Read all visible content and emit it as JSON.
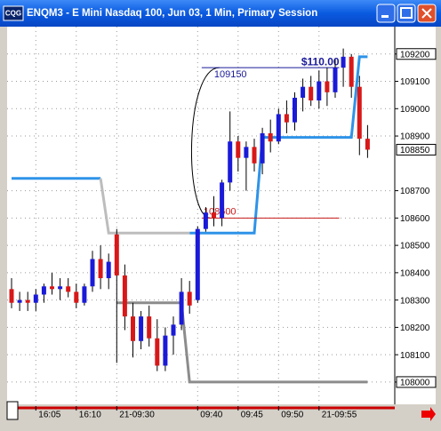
{
  "window": {
    "logo": "CQG"
  },
  "chart_data": {
    "type": "candlestick",
    "title": "ENQM3 - E Mini Nasdaq 100, Jun 03, 1 Min, Primary Session",
    "categories": [
      null,
      null,
      null,
      "16:05",
      null,
      null,
      null,
      null,
      "16:10",
      null,
      null,
      null,
      null,
      "21-09:30",
      null,
      null,
      null,
      null,
      null,
      null,
      null,
      null,
      null,
      "09:40",
      null,
      null,
      null,
      null,
      "09:45",
      null,
      null,
      null,
      null,
      "09:50",
      null,
      null,
      null,
      null,
      "21-09:55",
      null,
      null,
      null,
      null,
      null,
      null
    ],
    "open": [
      108340,
      108290,
      108300,
      108290,
      108320,
      108350,
      108340,
      108350,
      108330,
      108290,
      108350,
      108450,
      108380,
      108540,
      108390,
      108240,
      108150,
      108240,
      108160,
      108060,
      108170,
      108210,
      108330,
      108300,
      108560,
      108620,
      108600,
      108730,
      108880,
      108820,
      108860,
      108800,
      108910,
      108880,
      108980,
      108950,
      109040,
      109080,
      109030,
      109100,
      109060,
      109150,
      109190,
      109080,
      108890
    ],
    "high": [
      108380,
      108330,
      108330,
      108340,
      108360,
      108400,
      108380,
      108380,
      108360,
      108360,
      108480,
      108500,
      108470,
      108560,
      108430,
      108290,
      108260,
      108280,
      108230,
      108200,
      108240,
      108380,
      108370,
      108570,
      108640,
      108680,
      108740,
      108990,
      108900,
      108880,
      108890,
      108930,
      108960,
      109000,
      109030,
      109060,
      109110,
      109120,
      109140,
      109150,
      109180,
      109220,
      109200,
      109120,
      108940
    ],
    "low": [
      108270,
      108260,
      108260,
      108260,
      108290,
      108320,
      108300,
      108310,
      108270,
      108280,
      108330,
      108340,
      108340,
      108070,
      108190,
      108090,
      108120,
      108130,
      108040,
      108040,
      108100,
      108190,
      108250,
      108290,
      108550,
      108570,
      108570,
      108700,
      108770,
      108700,
      108770,
      108760,
      108840,
      108870,
      108910,
      108920,
      108990,
      109010,
      109000,
      109010,
      109040,
      109080,
      109040,
      108830,
      108820
    ],
    "close": [
      108290,
      108300,
      108290,
      108320,
      108350,
      108340,
      108350,
      108330,
      108290,
      108350,
      108450,
      108380,
      108440,
      108390,
      108240,
      108150,
      108240,
      108160,
      108060,
      108170,
      108210,
      108330,
      108280,
      108560,
      108620,
      108600,
      108730,
      108880,
      108820,
      108860,
      108800,
      108910,
      108880,
      108980,
      108950,
      109040,
      109080,
      109030,
      109100,
      109060,
      109150,
      109190,
      109080,
      108890,
      108850
    ],
    "up_color": "#1a1ad8",
    "down_color": "#d81818",
    "lines": [
      {
        "color": "#2e93e8",
        "values": [
          108745,
          108745,
          108745,
          108745,
          108745,
          108745,
          108745,
          108745,
          108745,
          108745,
          108745,
          108745,
          null,
          null,
          null,
          null,
          null,
          null,
          null,
          null,
          null,
          null,
          108545,
          108545,
          108545,
          108545,
          108545,
          108545,
          108545,
          108545,
          108545,
          108895,
          108895,
          108895,
          108895,
          108895,
          108895,
          108895,
          108895,
          108895,
          108895,
          108895,
          108895,
          109190,
          109190
        ]
      },
      {
        "color": "#bdbdbd",
        "values": [
          null,
          null,
          null,
          null,
          null,
          null,
          null,
          null,
          null,
          null,
          null,
          108745,
          108545,
          108545,
          108545,
          108545,
          108545,
          108545,
          108545,
          108545,
          108545,
          108545,
          108545,
          null,
          null,
          null,
          null,
          null,
          null,
          null,
          null,
          null,
          null,
          null,
          null,
          null,
          null,
          null,
          null,
          null,
          null,
          null,
          null,
          null,
          null
        ]
      },
      {
        "color": "#8c8c8c",
        "values": [
          null,
          null,
          null,
          null,
          null,
          null,
          null,
          null,
          null,
          null,
          null,
          null,
          null,
          108290,
          108290,
          108290,
          108290,
          108290,
          108290,
          108290,
          108290,
          108290,
          108000,
          108000,
          108000,
          108000,
          108000,
          108000,
          108000,
          108000,
          108000,
          108000,
          108000,
          108000,
          108000,
          108000,
          108000,
          108000,
          108000,
          108000,
          108000,
          108000,
          108000,
          108000,
          108000
        ]
      }
    ],
    "ylim": [
      107925,
      109300
    ],
    "yticks": [
      109200,
      109100,
      109000,
      108900,
      108700,
      108600,
      108500,
      108400,
      108300,
      108200,
      108100,
      108000
    ],
    "boxed_ticks": [
      0,
      11
    ],
    "last_price": 108850,
    "grid": true,
    "measure": {
      "high": 109150,
      "low": 108600,
      "text": "$110.00",
      "high_color": "#1a1a9a",
      "low_color": "#c81818"
    }
  }
}
